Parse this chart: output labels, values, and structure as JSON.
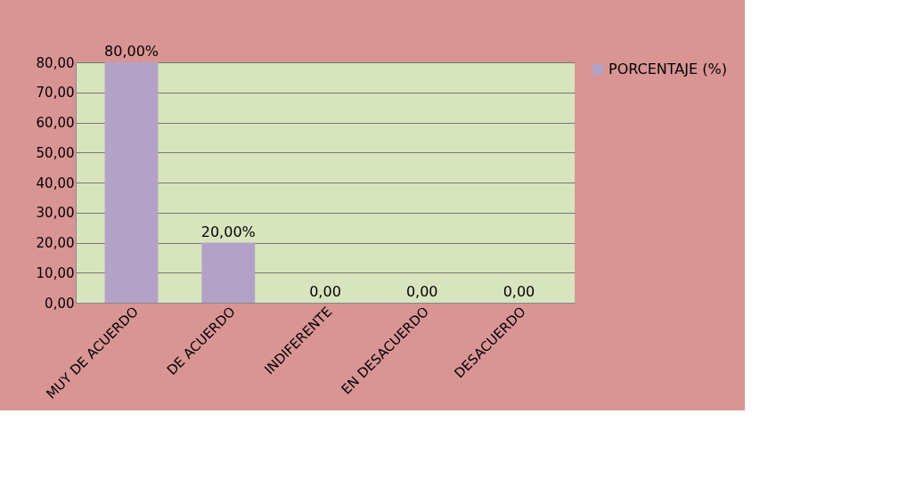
{
  "chart_data": {
    "type": "bar",
    "categories": [
      "MUY DE ACUERDO",
      "DE ACUERDO",
      "INDIFERENTE",
      "EN DESACUERDO",
      "DESACUERDO"
    ],
    "series": [
      {
        "name": "PORCENTAJE (%)",
        "color": "#b3a2c7",
        "values": [
          80,
          20,
          0,
          0,
          0
        ]
      }
    ],
    "value_labels": [
      "80,00%",
      "20,00%",
      "0,00",
      "0,00",
      "0,00"
    ],
    "ylim": [
      0,
      80
    ],
    "yticks": [
      {
        "value": 0,
        "label": "0,00"
      },
      {
        "value": 10,
        "label": "10,00"
      },
      {
        "value": 20,
        "label": "20,00"
      },
      {
        "value": 30,
        "label": "30,00"
      },
      {
        "value": 40,
        "label": "40,00"
      },
      {
        "value": 50,
        "label": "50,00"
      },
      {
        "value": 60,
        "label": "60,00"
      },
      {
        "value": 70,
        "label": "70,00"
      },
      {
        "value": 80,
        "label": "80,00"
      }
    ],
    "grid": "y",
    "legend": "right"
  }
}
